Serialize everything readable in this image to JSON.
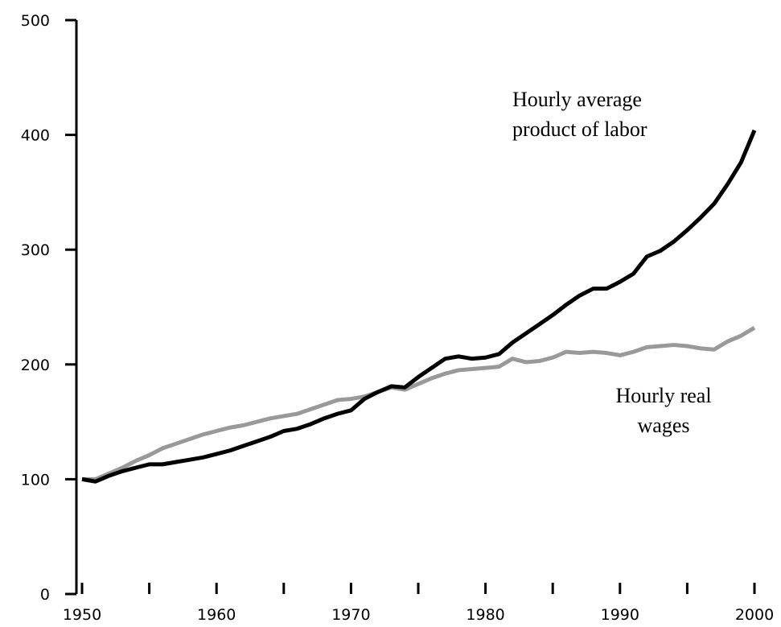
{
  "chart_data": {
    "type": "line",
    "x": [
      1950,
      1951,
      1952,
      1953,
      1954,
      1955,
      1956,
      1957,
      1958,
      1959,
      1960,
      1961,
      1962,
      1963,
      1964,
      1965,
      1966,
      1967,
      1968,
      1969,
      1970,
      1971,
      1972,
      1973,
      1974,
      1975,
      1976,
      1977,
      1978,
      1979,
      1980,
      1981,
      1982,
      1983,
      1984,
      1985,
      1986,
      1987,
      1988,
      1989,
      1990,
      1991,
      1992,
      1993,
      1994,
      1995,
      1996,
      1997,
      1998,
      1999,
      2000
    ],
    "series": [
      {
        "label": [
          "Hourly average",
          "product of labor"
        ],
        "color": "#000000",
        "values": [
          100,
          98,
          103,
          107,
          110,
          113,
          113,
          115,
          117,
          119,
          122,
          125,
          129,
          133,
          137,
          142,
          144,
          148,
          153,
          157,
          160,
          170,
          176,
          181,
          180,
          189,
          197,
          205,
          207,
          205,
          206,
          209,
          219,
          227,
          235,
          243,
          252,
          260,
          266,
          266,
          272,
          279,
          294,
          299,
          307,
          317,
          328,
          340,
          357,
          376,
          404
        ]
      },
      {
        "label": [
          "Hourly real",
          "wages"
        ],
        "color": "#999999",
        "values": [
          100,
          100,
          105,
          110,
          116,
          121,
          127,
          131,
          135,
          139,
          142,
          145,
          147,
          150,
          153,
          155,
          157,
          161,
          165,
          169,
          170,
          172,
          176,
          180,
          178,
          183,
          188,
          192,
          195,
          196,
          197,
          198,
          205,
          202,
          203,
          206,
          211,
          210,
          211,
          210,
          208,
          211,
          215,
          216,
          217,
          216,
          214,
          213,
          220,
          225,
          232
        ]
      }
    ],
    "xlim": [
      1950,
      2000
    ],
    "xticks": [
      1950,
      1960,
      1970,
      1980,
      1990,
      2000
    ],
    "xminorticks": [
      1955,
      1965,
      1975,
      1985,
      1995
    ],
    "ylim": [
      0,
      500
    ],
    "yticks": [
      0,
      100,
      200,
      300,
      400,
      500
    ]
  }
}
